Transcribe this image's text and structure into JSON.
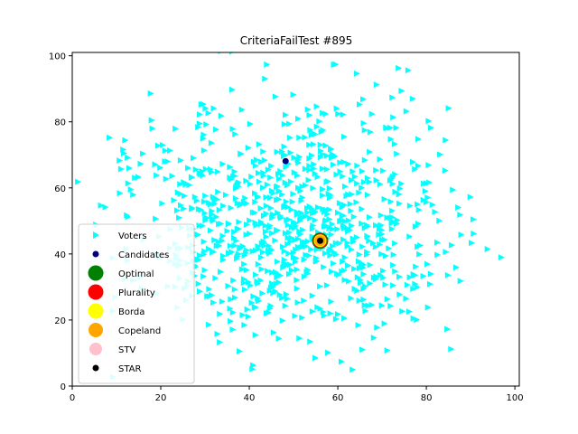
{
  "chart_data": {
    "type": "scatter",
    "title": "CriteriaFailTest #895",
    "xlabel": "",
    "ylabel": "",
    "xlim": [
      0,
      101
    ],
    "ylim": [
      0,
      101
    ],
    "xticks": [
      0,
      20,
      40,
      60,
      80,
      100
    ],
    "yticks": [
      0,
      20,
      40,
      60,
      80,
      100
    ],
    "grid": false,
    "legend_position": "lower-left",
    "voters": {
      "name": "Voters",
      "color": "#00ffff",
      "marker": "triangle-right",
      "center": [
        50,
        50
      ],
      "spread": [
        18,
        17
      ],
      "count": 900
    },
    "series": [
      {
        "name": "Candidates",
        "color": "#000080",
        "marker": "circle",
        "points": [
          [
            48.2,
            68.1
          ],
          [
            56.0,
            44.0
          ]
        ]
      },
      {
        "name": "Optimal",
        "color": "#008000",
        "marker": "circle-large",
        "points": [
          [
            56.0,
            44.0
          ]
        ]
      },
      {
        "name": "Plurality",
        "color": "#ff0000",
        "marker": "circle-large",
        "points": [
          [
            56.0,
            44.0
          ]
        ]
      },
      {
        "name": "Borda",
        "color": "#ffff00",
        "marker": "circle-large",
        "points": [
          [
            56.0,
            44.0
          ]
        ]
      },
      {
        "name": "Copeland",
        "color": "#ffa500",
        "marker": "circle-large",
        "points": [
          [
            56.0,
            44.0
          ]
        ]
      },
      {
        "name": "STV",
        "color": "#ffc0cb",
        "marker": "circle-large",
        "points": [
          [
            56.0,
            44.0
          ]
        ]
      },
      {
        "name": "STAR",
        "color": "#000000",
        "marker": "circle",
        "points": [
          [
            56.0,
            44.0
          ]
        ]
      }
    ],
    "legend": [
      "Voters",
      "Candidates",
      "Optimal",
      "Plurality",
      "Borda",
      "Copeland",
      "STV",
      "STAR"
    ]
  }
}
